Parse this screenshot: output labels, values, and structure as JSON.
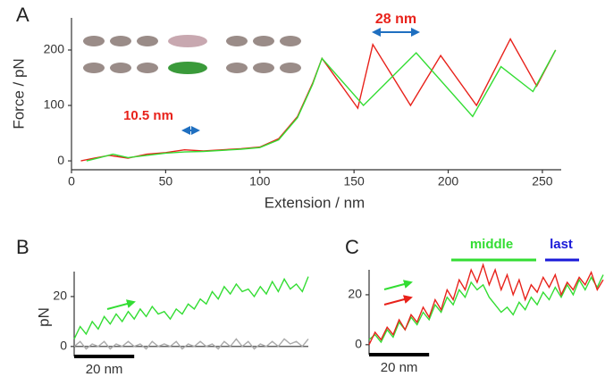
{
  "chart_data": [
    {
      "type": "line",
      "panel": "A",
      "xlabel": "Extension / nm",
      "ylabel": "Force / pN",
      "xlim": [
        0,
        260
      ],
      "ylim": [
        -16,
        258
      ],
      "xticks": [
        0,
        50,
        100,
        150,
        200,
        250
      ],
      "yticks": [
        0,
        100,
        200
      ],
      "annotations": [
        {
          "text": "28 nm",
          "color": "#e8221b"
        },
        {
          "text": "10.5 nm",
          "color": "#e8221b"
        }
      ],
      "series": [
        {
          "color": "#e8221b",
          "x": [
            5,
            12,
            20,
            30,
            40,
            50,
            60,
            70,
            80,
            90,
            100,
            110,
            120,
            128,
            133,
            152,
            160,
            180,
            196,
            215,
            233,
            247,
            257
          ],
          "values": [
            0,
            5,
            10,
            5,
            12,
            15,
            20,
            18,
            20,
            22,
            25,
            40,
            80,
            140,
            185,
            95,
            210,
            100,
            190,
            100,
            220,
            135,
            200
          ]
        },
        {
          "color": "#33dd33",
          "x": [
            8,
            15,
            22,
            30,
            40,
            50,
            60,
            70,
            80,
            90,
            100,
            110,
            120,
            128,
            133,
            155,
            183,
            213,
            228,
            245,
            257
          ],
          "values": [
            0,
            6,
            12,
            6,
            10,
            14,
            16,
            17,
            19,
            21,
            24,
            38,
            78,
            138,
            185,
            100,
            195,
            80,
            170,
            125,
            200
          ]
        }
      ]
    },
    {
      "type": "line",
      "panel": "B",
      "ylabel": "pN",
      "xlim": [
        0,
        78
      ],
      "ylim": [
        -4,
        30
      ],
      "yticks": [
        0,
        20
      ],
      "scale_bar": {
        "length": 20,
        "label": "20 nm"
      },
      "x": [
        0,
        2,
        4,
        6,
        8,
        10,
        12,
        14,
        16,
        18,
        20,
        22,
        24,
        26,
        28,
        30,
        32,
        34,
        36,
        38,
        40,
        42,
        44,
        46,
        48,
        50,
        52,
        54,
        56,
        58,
        60,
        62,
        64,
        66,
        68,
        70,
        72,
        74,
        76,
        78
      ],
      "series": [
        {
          "color": "#33dd33",
          "values": [
            3,
            8,
            5,
            10,
            7,
            12,
            9,
            13,
            10,
            14,
            11,
            15,
            12,
            16,
            13,
            14,
            11,
            15,
            13,
            17,
            15,
            19,
            17,
            22,
            19,
            24,
            21,
            25,
            22,
            23,
            20,
            24,
            21,
            26,
            22,
            27,
            23,
            25,
            22,
            28
          ]
        },
        {
          "color": "#aaaaaa",
          "values": [
            0,
            2,
            -1,
            1,
            0,
            2,
            -1,
            1,
            0,
            2,
            0,
            1,
            -1,
            2,
            0,
            1,
            0,
            2,
            -1,
            1,
            0,
            2,
            0,
            1,
            -1,
            2,
            0,
            3,
            0,
            2,
            -1,
            1,
            0,
            2,
            0,
            3,
            1,
            2,
            0,
            3
          ]
        }
      ]
    },
    {
      "type": "line",
      "panel": "C",
      "xlim": [
        0,
        78
      ],
      "ylim": [
        -4,
        30
      ],
      "yticks": [
        0,
        20
      ],
      "scale_bar": {
        "length": 20,
        "label": "20 nm"
      },
      "annotations": [
        {
          "text": "middle",
          "color": "#33dd33"
        },
        {
          "text": "last",
          "color": "#1a1ad8"
        }
      ],
      "x": [
        0,
        2,
        4,
        6,
        8,
        10,
        12,
        14,
        16,
        18,
        20,
        22,
        24,
        26,
        28,
        30,
        32,
        34,
        36,
        38,
        40,
        42,
        44,
        46,
        48,
        50,
        52,
        54,
        56,
        58,
        60,
        62,
        64,
        66,
        68,
        70,
        72,
        74,
        76,
        78
      ],
      "series": [
        {
          "color": "#33dd33",
          "values": [
            2,
            4,
            1,
            6,
            3,
            9,
            6,
            11,
            8,
            13,
            10,
            16,
            13,
            19,
            16,
            22,
            19,
            25,
            22,
            24,
            19,
            16,
            13,
            15,
            12,
            17,
            14,
            19,
            16,
            21,
            18,
            23,
            19,
            24,
            20,
            26,
            22,
            27,
            23,
            28
          ]
        },
        {
          "color": "#e8221b",
          "values": [
            0,
            5,
            2,
            7,
            4,
            10,
            6,
            12,
            9,
            15,
            11,
            18,
            14,
            22,
            18,
            26,
            22,
            30,
            25,
            32,
            24,
            30,
            22,
            28,
            20,
            26,
            18,
            24,
            21,
            27,
            23,
            28,
            20,
            25,
            22,
            27,
            24,
            29,
            22,
            26
          ]
        }
      ]
    }
  ]
}
